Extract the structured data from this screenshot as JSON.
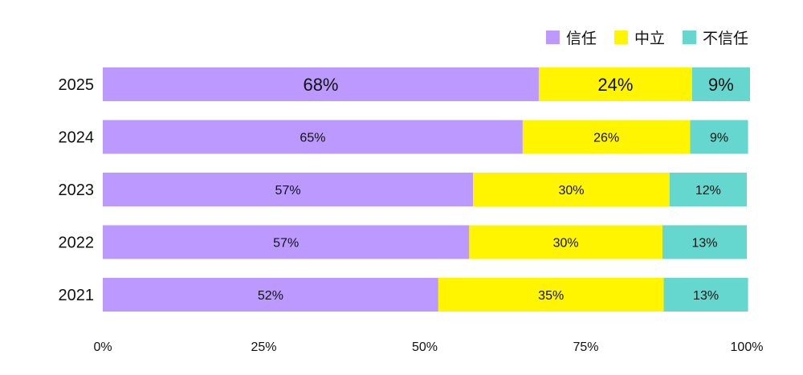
{
  "chart_data": {
    "type": "bar",
    "orientation": "horizontal",
    "stacked": true,
    "categories": [
      "2025",
      "2024",
      "2023",
      "2022",
      "2021"
    ],
    "series": [
      {
        "name": "信任",
        "color": "#bb99ff",
        "values": [
          67.7,
          65.2,
          57.5,
          56.9,
          52.1
        ],
        "labels": [
          "68%",
          "65%",
          "57%",
          "57%",
          "52%"
        ]
      },
      {
        "name": "中立",
        "color": "#fff500",
        "values": [
          23.8,
          26.0,
          30.5,
          30.0,
          35.0
        ],
        "labels": [
          "24%",
          "26%",
          "30%",
          "30%",
          "35%"
        ]
      },
      {
        "name": "不信任",
        "color": "#66d7ce",
        "values": [
          9.0,
          9.0,
          12.0,
          13.1,
          13.1
        ],
        "labels": [
          "9%",
          "9%",
          "12%",
          "13%",
          "13%"
        ]
      }
    ],
    "highlighted_category": "2025",
    "xlim": [
      0,
      100
    ],
    "xticks": [
      "0%",
      "25%",
      "50%",
      "75%",
      "100%"
    ],
    "grid": false,
    "legend_position": "top-right"
  }
}
